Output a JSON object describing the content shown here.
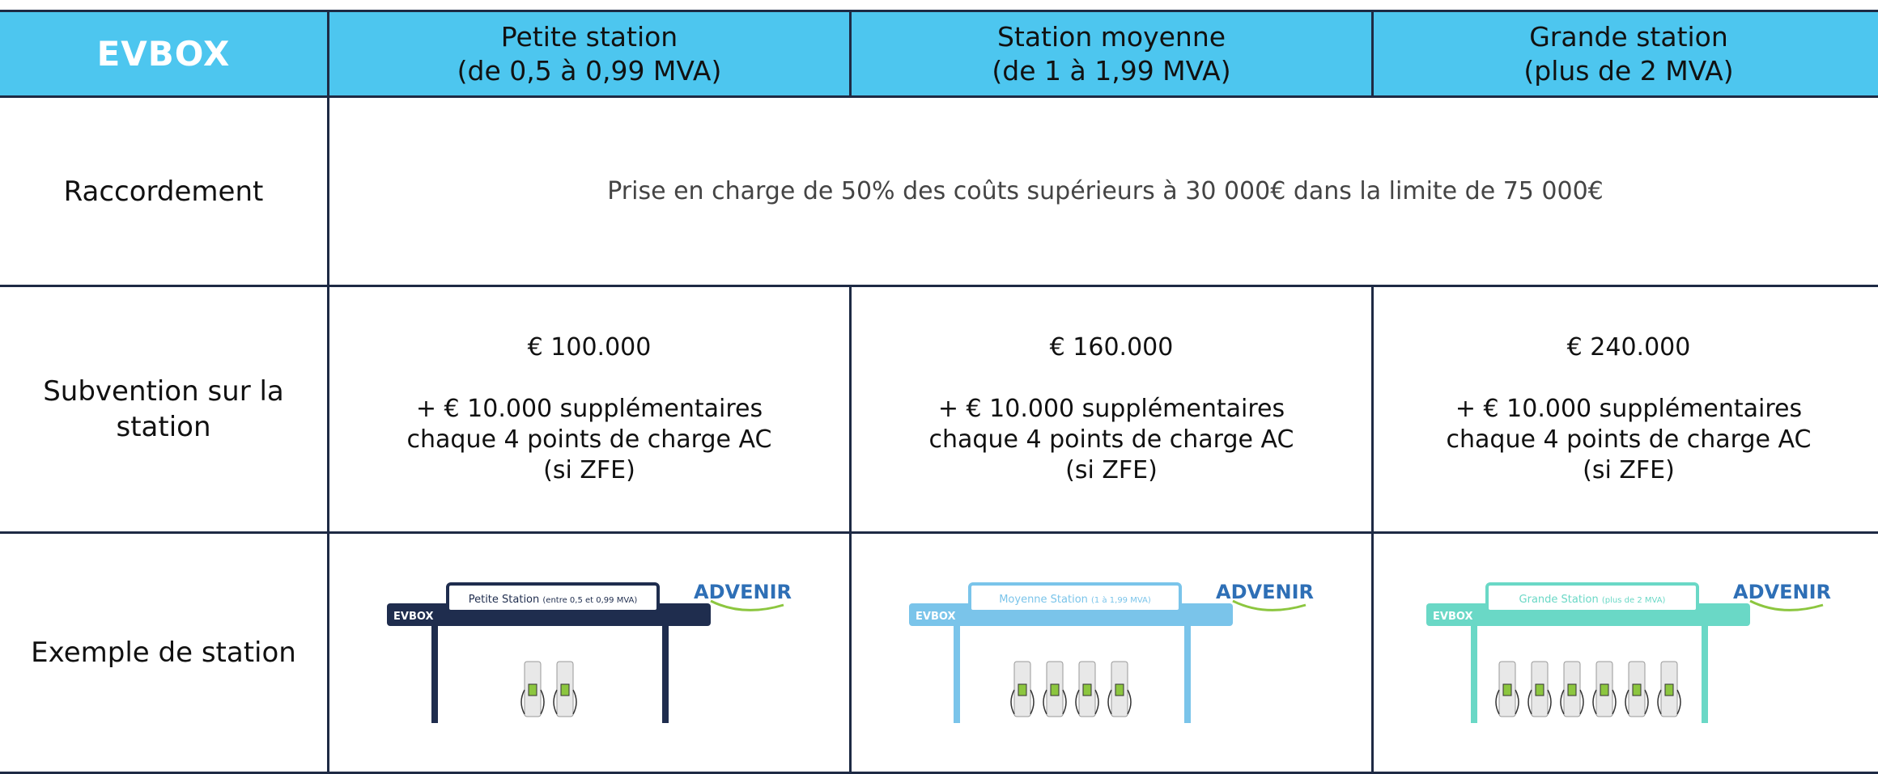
{
  "header": {
    "logo": "EVBOX",
    "columns": [
      {
        "name": "Petite station",
        "range": "(de 0,5 à 0,99 MVA)"
      },
      {
        "name": "Station moyenne",
        "range": "(de 1 à 1,99 MVA)"
      },
      {
        "name": "Grande station",
        "range": "(plus de 2 MVA)"
      }
    ]
  },
  "rows": {
    "raccordement": {
      "label": "Raccordement",
      "text": "Prise en charge de 50% des coûts supérieurs à 30 000€ dans la limite de 75 000€"
    },
    "subvention": {
      "label": "Subvention sur la station",
      "cells": [
        {
          "amount": "€ 100.000",
          "lines": [
            "+ € 10.000 supplémentaires",
            "chaque 4 points de charge AC",
            "(si ZFE)"
          ]
        },
        {
          "amount": "€ 160.000",
          "lines": [
            "+ € 10.000 supplémentaires",
            "chaque 4 points de charge AC",
            "(si ZFE)"
          ]
        },
        {
          "amount": "€ 240.000",
          "lines": [
            "+ € 10.000 supplémentaires",
            "chaque 4 points de charge AC",
            "(si ZFE)"
          ]
        }
      ]
    },
    "exemple": {
      "label": "Exemple de station",
      "cells": [
        {
          "logo": "EVBOX",
          "sign": "Petite Station",
          "sign_detail": "(entre 0,5 et 0,99 MVA)",
          "brand": "ADVENIR"
        },
        {
          "logo": "EVBOX",
          "sign": "Moyenne Station",
          "sign_detail": "(1 à 1,99 MVA)",
          "brand": "ADVENIR"
        },
        {
          "logo": "EVBOX",
          "sign": "Grande Station",
          "sign_detail": "(plus de 2 MVA)",
          "brand": "ADVENIR"
        }
      ]
    }
  }
}
